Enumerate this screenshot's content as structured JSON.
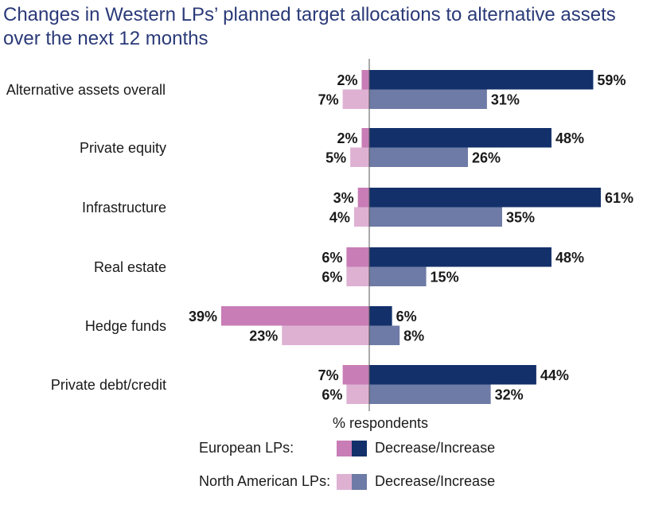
{
  "title_lines": [
    "Changes in Western LPs’ planned target allocations to alternative assets",
    "over the next 12 months"
  ],
  "colors": {
    "eu_decrease": "#c87db6",
    "eu_increase": "#13306a",
    "na_decrease": "#deb1d3",
    "na_increase": "#6e7ba6",
    "axis": "#555555",
    "title": "#2a3a78"
  },
  "chart_data": {
    "type": "bar",
    "orientation": "horizontal-diverging",
    "categories": [
      "Alternative assets overall",
      "Private equity",
      "Infrastructure",
      "Real estate",
      "Hedge funds",
      "Private debt/credit"
    ],
    "series": [
      {
        "name": "European LPs: Decrease",
        "direction": "decrease",
        "group": "European LPs",
        "values": [
          2,
          2,
          3,
          6,
          39,
          7
        ]
      },
      {
        "name": "European LPs: Increase",
        "direction": "increase",
        "group": "European LPs",
        "values": [
          59,
          48,
          61,
          48,
          6,
          44
        ]
      },
      {
        "name": "North American LPs: Decrease",
        "direction": "decrease",
        "group": "North American LPs",
        "values": [
          7,
          5,
          4,
          6,
          23,
          6
        ]
      },
      {
        "name": "North American LPs: Increase",
        "direction": "increase",
        "group": "North American LPs",
        "values": [
          31,
          26,
          35,
          15,
          8,
          32
        ]
      }
    ],
    "value_suffix": "%",
    "xlabel": "% respondents",
    "ylabel": "",
    "grid": false,
    "legend": {
      "placement": "bottom",
      "rows": [
        {
          "label": "European LPs:",
          "text": "Decrease/Increase",
          "colors": [
            "#c87db6",
            "#13306a"
          ]
        },
        {
          "label": "North American LPs:",
          "text": "Decrease/Increase",
          "colors": [
            "#deb1d3",
            "#6e7ba6"
          ]
        }
      ]
    }
  }
}
